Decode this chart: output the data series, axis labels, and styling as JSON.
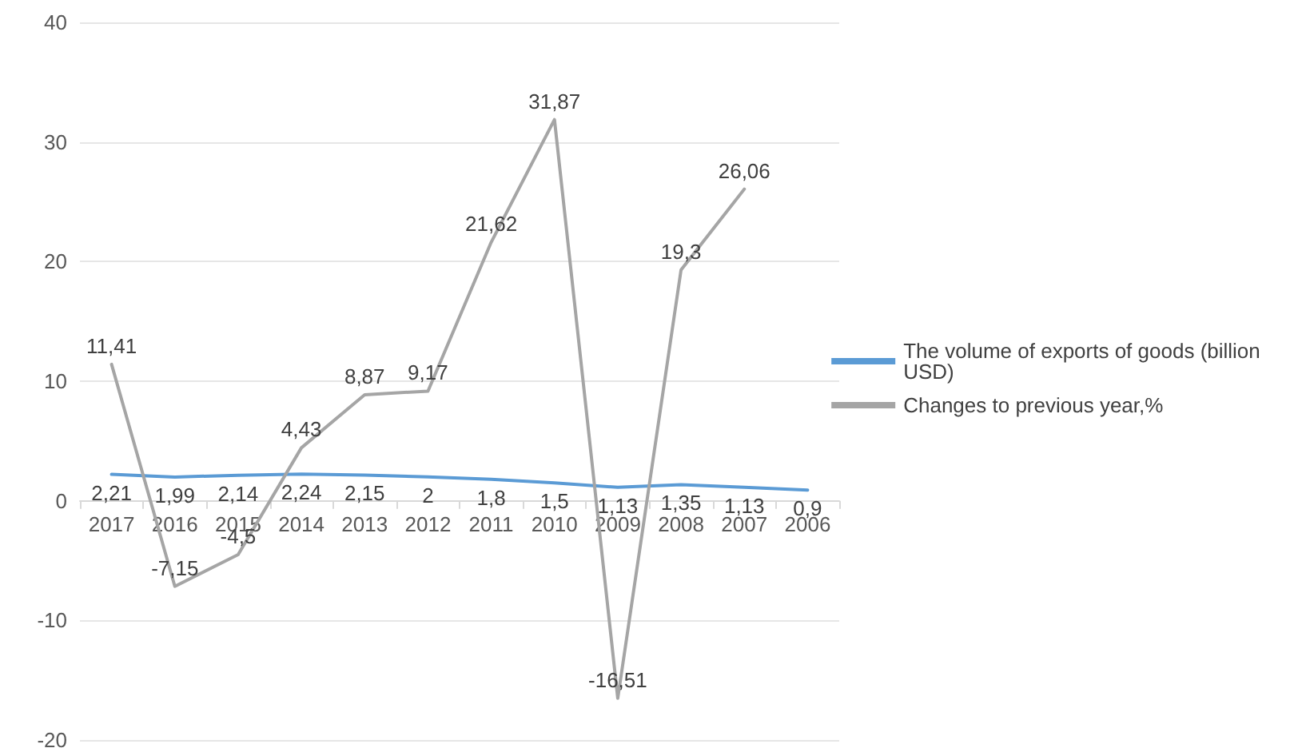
{
  "chart_data": {
    "type": "line",
    "categories": [
      "2017",
      "2016",
      "2015",
      "2014",
      "2013",
      "2012",
      "2011",
      "2010",
      "2009",
      "2008",
      "2007",
      "2006"
    ],
    "series": [
      {
        "name": "The volume of exports of goods (billion USD)",
        "color": "#5b9bd5",
        "values": [
          2.21,
          1.99,
          2.14,
          2.24,
          2.15,
          2,
          1.8,
          1.5,
          1.13,
          1.35,
          1.13,
          0.9
        ],
        "value_labels": [
          "2,21",
          "1,99",
          "2,14",
          "2,24",
          "2,15",
          "2",
          "1,8",
          "1,5",
          "1,13",
          "1,35",
          "1,13",
          "0,9"
        ]
      },
      {
        "name": "Changes to previous year,%",
        "color": "#a5a5a5",
        "values": [
          11.41,
          -7.15,
          -4.5,
          4.43,
          8.87,
          9.17,
          21.62,
          31.87,
          -16.51,
          19.3,
          26.06,
          null
        ],
        "value_labels": [
          "11,41",
          "-7,15",
          "-4,5",
          "4,43",
          "8,87",
          "9,17",
          "21,62",
          "31,87",
          "-16,51",
          "19,3",
          "26,06",
          null
        ]
      }
    ],
    "ylim": [
      -20,
      40
    ],
    "yticks": [
      -20,
      -10,
      0,
      10,
      20,
      30,
      40
    ],
    "grid": "y",
    "legend": "right",
    "marker": "none",
    "line_style": "solid"
  }
}
